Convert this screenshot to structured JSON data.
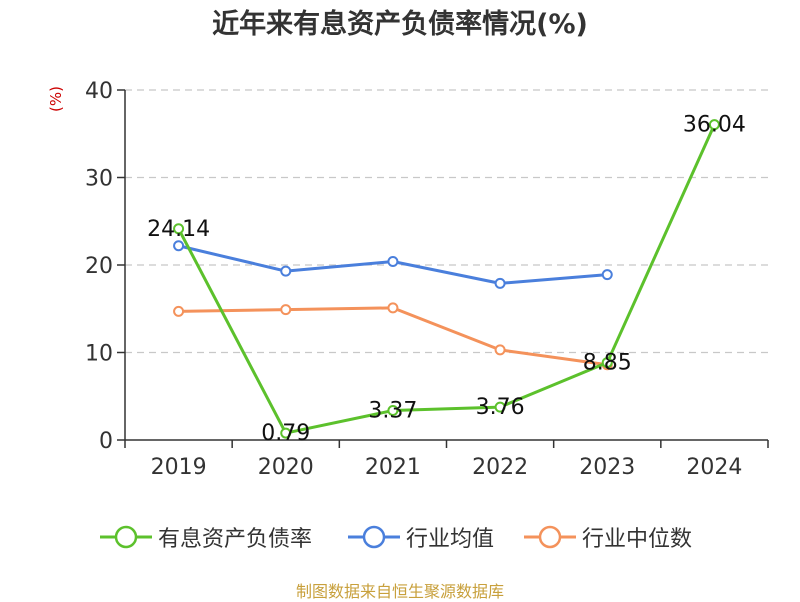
{
  "chart_data": {
    "type": "line",
    "title": "近年来有息资产负债率情况(%)",
    "ylabel": "(%)",
    "xlabel": "",
    "categories": [
      "2019",
      "2020",
      "2021",
      "2022",
      "2023",
      "2024"
    ],
    "ylim": [
      0,
      40
    ],
    "yticks": [
      0,
      10,
      20,
      30,
      40
    ],
    "grid": true,
    "legend_position": "bottom",
    "series": [
      {
        "name": "有息资产负债率",
        "color": "#5cc12c",
        "values": [
          24.14,
          0.79,
          3.37,
          3.76,
          8.85,
          36.04
        ],
        "labels": [
          "24.14",
          "0.79",
          "3.37",
          "3.76",
          "8.85",
          "36.04"
        ]
      },
      {
        "name": "行业均值",
        "color": "#4a7fdc",
        "values": [
          22.2,
          19.3,
          20.4,
          17.9,
          18.9,
          null
        ]
      },
      {
        "name": "行业中位数",
        "color": "#f4925b",
        "values": [
          14.7,
          14.9,
          15.1,
          10.3,
          8.6,
          null
        ]
      }
    ]
  },
  "source": "制图数据来自恒生聚源数据库"
}
